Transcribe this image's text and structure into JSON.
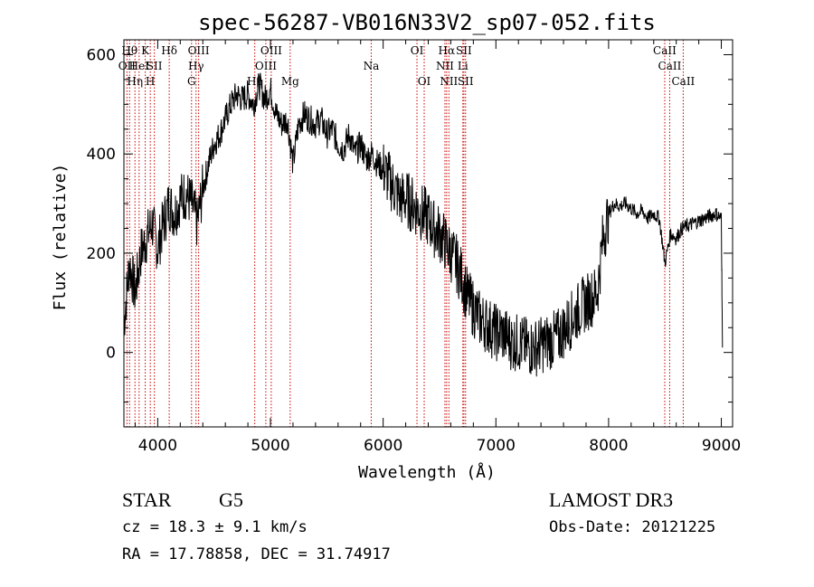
{
  "chart_data": {
    "type": "line",
    "title": "spec-56287-VB016N33V2_sp07-052.fits",
    "xlabel": "Wavelength (Å)",
    "ylabel": "Flux (relative)",
    "xlim": [
      3700,
      9100
    ],
    "ylim": [
      -150,
      630
    ],
    "xticks": [
      4000,
      5000,
      6000,
      7000,
      8000,
      9000
    ],
    "yticks": [
      0,
      200,
      400,
      600
    ],
    "series": [
      {
        "name": "flux",
        "x": [
          3700,
          3750,
          3800,
          3850,
          3900,
          3950,
          4000,
          4050,
          4100,
          4150,
          4200,
          4250,
          4300,
          4350,
          4400,
          4450,
          4500,
          4550,
          4600,
          4650,
          4700,
          4750,
          4800,
          4850,
          4900,
          4950,
          5000,
          5050,
          5100,
          5150,
          5200,
          5250,
          5300,
          5350,
          5400,
          5450,
          5500,
          5550,
          5600,
          5650,
          5700,
          5750,
          5800,
          5850,
          5900,
          5950,
          6000,
          6050,
          6100,
          6150,
          6200,
          6250,
          6300,
          6350,
          6400,
          6450,
          6500,
          6550,
          6600,
          6650,
          6700,
          6750,
          6800,
          6850,
          6900,
          6950,
          7000,
          7050,
          7100,
          7150,
          7200,
          7250,
          7300,
          7350,
          7400,
          7450,
          7500,
          7550,
          7600,
          7650,
          7700,
          7750,
          7800,
          7850,
          7900,
          7950,
          8000,
          8050,
          8100,
          8150,
          8200,
          8250,
          8300,
          8350,
          8400,
          8450,
          8500,
          8550,
          8600,
          8650,
          8700,
          8750,
          8800,
          8850,
          8900,
          8950,
          9000,
          9010
        ],
        "y": [
          60,
          180,
          120,
          200,
          230,
          260,
          210,
          260,
          300,
          280,
          310,
          320,
          300,
          260,
          330,
          380,
          420,
          440,
          470,
          500,
          520,
          510,
          520,
          500,
          540,
          510,
          530,
          480,
          460,
          470,
          380,
          460,
          480,
          470,
          460,
          470,
          440,
          450,
          420,
          410,
          440,
          400,
          420,
          390,
          400,
          380,
          370,
          350,
          330,
          310,
          310,
          300,
          290,
          280,
          270,
          250,
          240,
          220,
          200,
          180,
          150,
          110,
          90,
          70,
          60,
          50,
          40,
          40,
          30,
          20,
          20,
          15,
          10,
          10,
          15,
          20,
          25,
          30,
          45,
          60,
          75,
          90,
          100,
          110,
          120,
          230,
          280,
          300,
          295,
          300,
          290,
          280,
          285,
          270,
          280,
          270,
          180,
          240,
          230,
          250,
          255,
          260,
          265,
          270,
          275,
          280,
          270,
          10
        ]
      }
    ],
    "lines": [
      {
        "wave": 3727,
        "label": "OII",
        "row": 2
      },
      {
        "wave": 3750,
        "label": "Hθ",
        "row": 1
      },
      {
        "wave": 3798,
        "label": "Hη",
        "row": 3
      },
      {
        "wave": 3835,
        "label": "HeI",
        "row": 2
      },
      {
        "wave": 3889,
        "label": "K",
        "row": 1
      },
      {
        "wave": 3934,
        "label": "H",
        "row": 3
      },
      {
        "wave": 3970,
        "label": "SII",
        "row": 2
      },
      {
        "wave": 4102,
        "label": "Hδ",
        "row": 1
      },
      {
        "wave": 4300,
        "label": "G",
        "row": 3
      },
      {
        "wave": 4340,
        "label": "Hγ",
        "row": 2
      },
      {
        "wave": 4363,
        "label": "OIII",
        "row": 1
      },
      {
        "wave": 4861,
        "label": "Hβ",
        "row": 3
      },
      {
        "wave": 4959,
        "label": "OIII",
        "row": 2
      },
      {
        "wave": 5007,
        "label": "OIII",
        "row": 1
      },
      {
        "wave": 5175,
        "label": "Mg",
        "row": 3
      },
      {
        "wave": 5894,
        "label": "Na",
        "row": 2
      },
      {
        "wave": 6300,
        "label": "OI",
        "row": 1
      },
      {
        "wave": 6364,
        "label": "OI",
        "row": 3
      },
      {
        "wave": 6548,
        "label": "NII",
        "row": 2
      },
      {
        "wave": 6563,
        "label": "Hα",
        "row": 1
      },
      {
        "wave": 6583,
        "label": "NII",
        "row": 3
      },
      {
        "wave": 6707,
        "label": "Li",
        "row": 2
      },
      {
        "wave": 6716,
        "label": "SII",
        "row": 1
      },
      {
        "wave": 6731,
        "label": "SII",
        "row": 3
      },
      {
        "wave": 8498,
        "label": "CaII",
        "row": 1
      },
      {
        "wave": 8542,
        "label": "CaII",
        "row": 2
      },
      {
        "wave": 8662,
        "label": "CaII",
        "row": 3
      }
    ]
  },
  "info": {
    "class": "STAR",
    "subclass": "G5",
    "survey": "LAMOST DR3",
    "cz": "cz = 18.3 ± 9.1 km/s",
    "obsdate": "Obs-Date: 20121225",
    "coords": "RA =  17.78858, DEC =  31.74917"
  }
}
